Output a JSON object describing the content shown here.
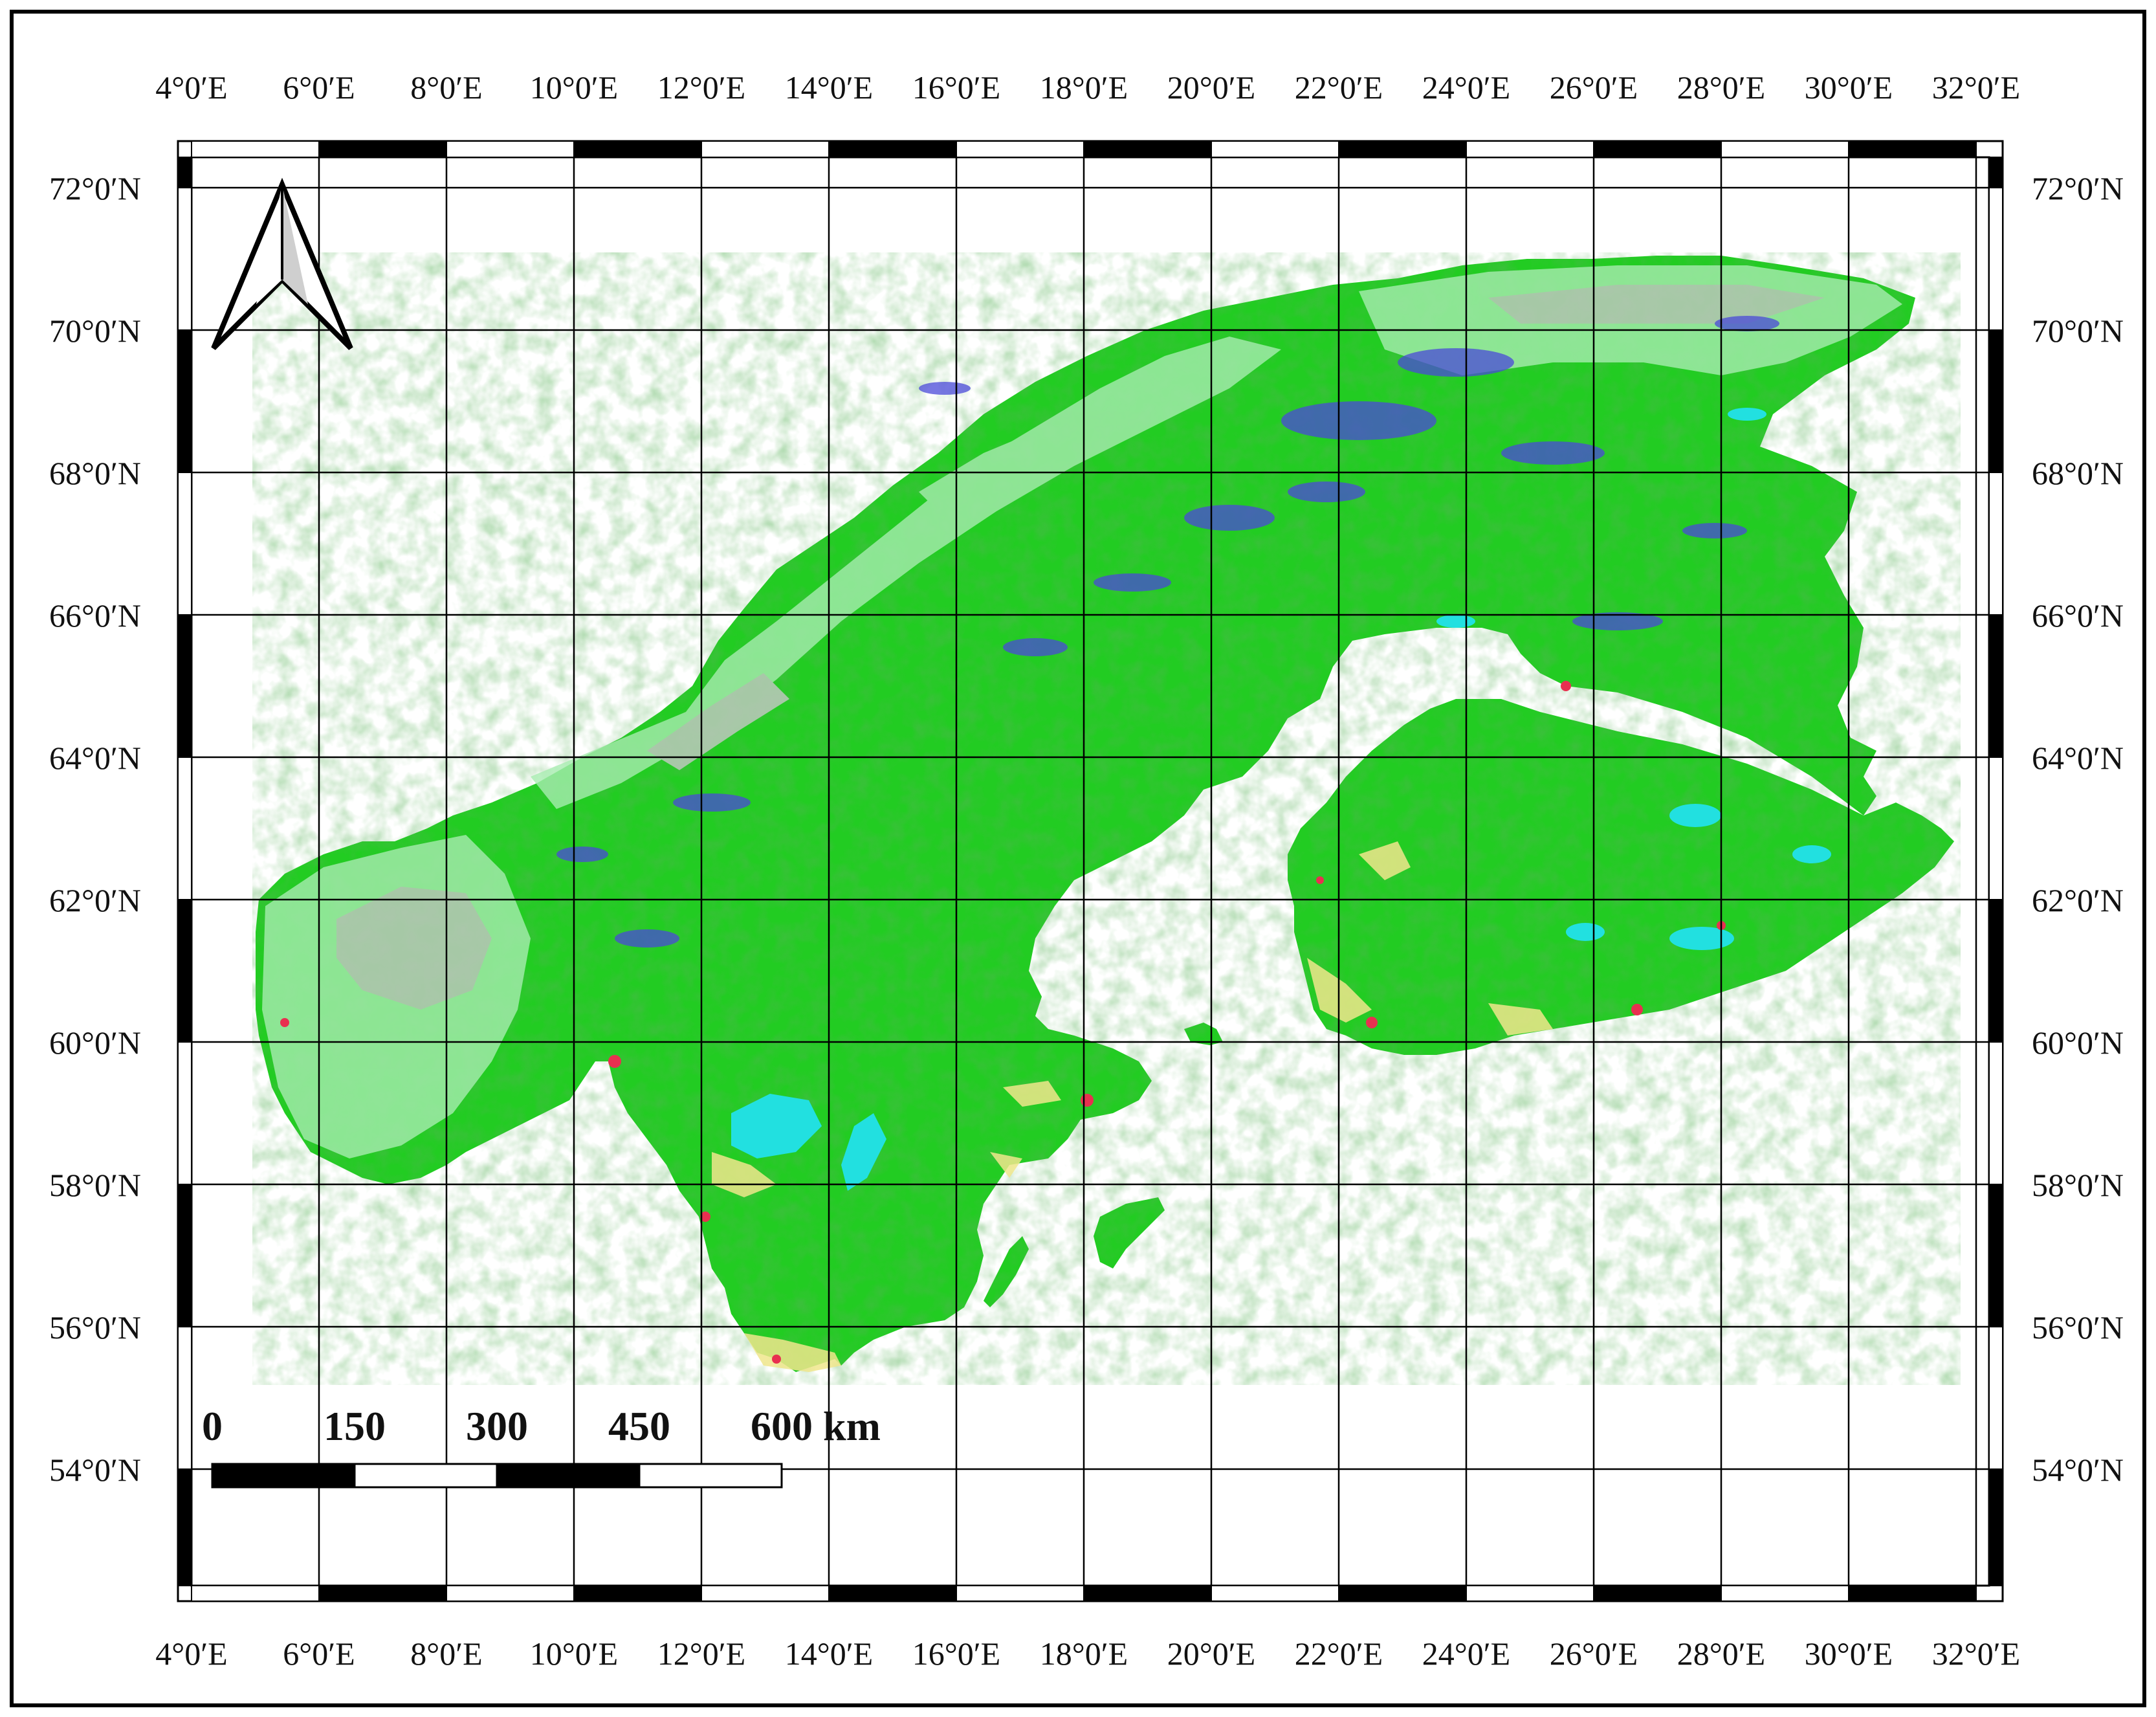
{
  "map": {
    "lon_labels": [
      "4°0′E",
      "6°0′E",
      "8°0′E",
      "10°0′E",
      "12°0′E",
      "14°0′E",
      "16°0′E",
      "18°0′E",
      "20°0′E",
      "22°0′E",
      "24°0′E",
      "26°0′E",
      "28°0′E",
      "30°0′E",
      "32°0′E"
    ],
    "lat_labels": [
      "72°0′N",
      "70°0′N",
      "68°0′N",
      "66°0′N",
      "64°0′N",
      "62°0′N",
      "60°0′N",
      "58°0′N",
      "56°0′N",
      "54°0′N"
    ],
    "scale_bar": {
      "labels": [
        "0",
        "150",
        "300",
        "450",
        "600 km"
      ]
    },
    "north_arrow": "north-arrow-icon",
    "colors": {
      "land_green": "#22cc22",
      "light_green": "#a8ecb0",
      "grey_bare": "#c8c8c8",
      "water_cyan": "#22e0e0",
      "blue_lakes": "#4a4ad8",
      "urban_red": "#e83050",
      "crop_yellow": "#f0e68c",
      "frame": "#000000"
    }
  }
}
